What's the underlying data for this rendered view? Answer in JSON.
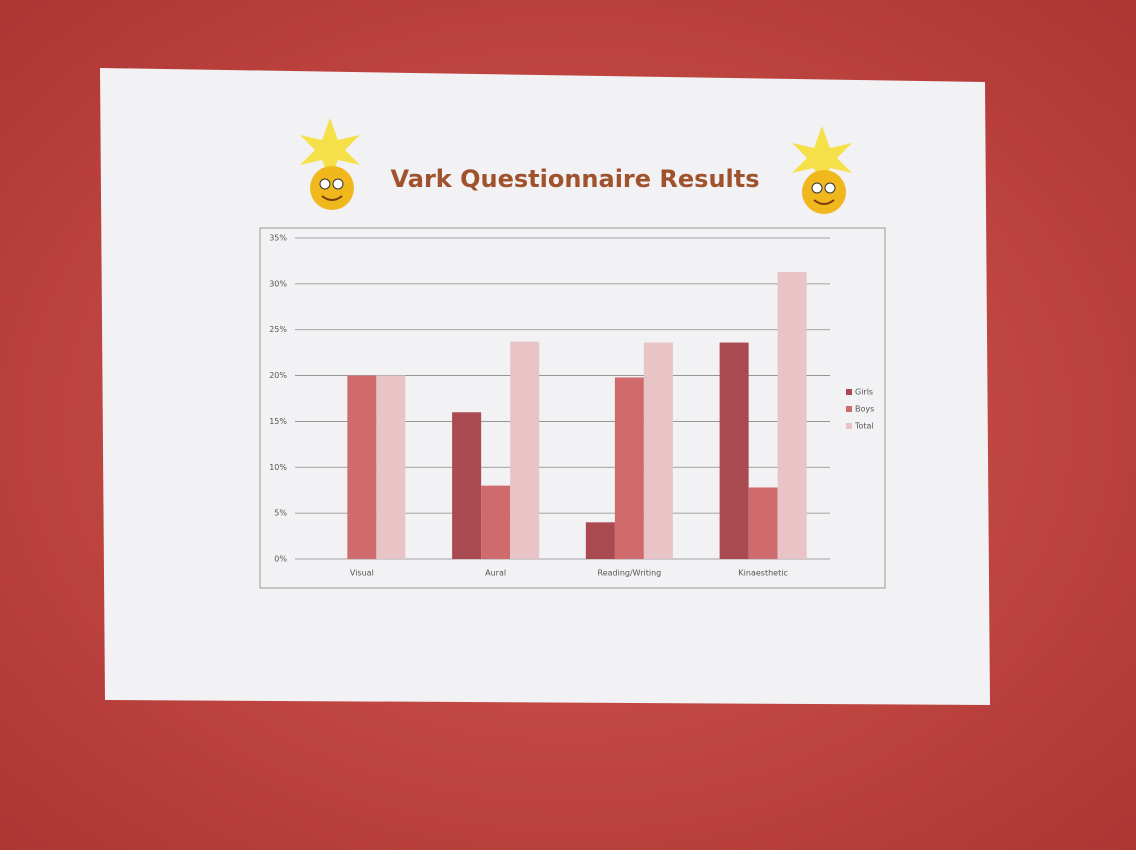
{
  "chart_data": {
    "type": "bar",
    "title": "Vark Questionnaire Results",
    "categories": [
      "Visual",
      "Aural",
      "Reading/Writing",
      "Kinaesthetic"
    ],
    "series": [
      {
        "name": "Girls",
        "color": "#a84a4f",
        "values": [
          0,
          16,
          4,
          23.6
        ]
      },
      {
        "name": "Boys",
        "color": "#cf6a6d",
        "values": [
          20,
          8,
          19.8,
          7.8
        ]
      },
      {
        "name": "Total",
        "color": "#e8c4c6",
        "values": [
          20,
          23.7,
          23.6,
          31.3
        ]
      }
    ],
    "ylim": [
      0,
      35
    ],
    "yticks": [
      {
        "value": 0,
        "label": "0%"
      },
      {
        "value": 5,
        "label": "5%"
      },
      {
        "value": 10,
        "label": "10%"
      },
      {
        "value": 15,
        "label": "15%"
      },
      {
        "value": 20,
        "label": "20%"
      },
      {
        "value": 25,
        "label": "25%"
      },
      {
        "value": 30,
        "label": "30%"
      },
      {
        "value": 35,
        "label": "35%"
      }
    ],
    "grid": true,
    "legend": "right"
  }
}
